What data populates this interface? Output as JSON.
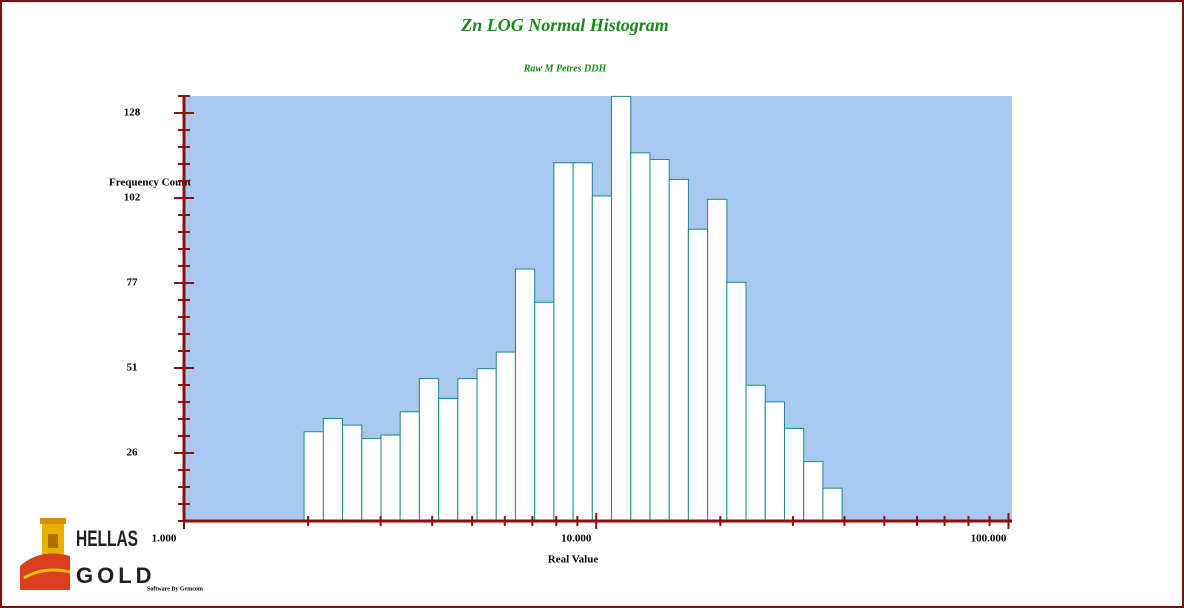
{
  "chart_data": {
    "type": "histogram",
    "title": "Zn LOG Normal Histogram",
    "subtitle": "Raw M Petres DDH",
    "xlabel": "Real Value",
    "ylabel": "Frequency Count",
    "xlog": true,
    "bins": [
      1.956,
      2.178,
      2.424,
      2.699,
      3.005,
      3.345,
      3.724,
      4.146,
      4.616,
      5.139,
      5.721,
      6.369,
      7.091,
      7.894,
      8.789,
      9.784,
      10.893,
      12.127,
      13.501,
      15.031,
      16.734,
      18.63,
      20.741,
      23.091,
      25.707,
      28.62,
      31.862,
      35.472,
      39.491
    ],
    "values": [
      32,
      36,
      34,
      30,
      31,
      38,
      48,
      42,
      48,
      51,
      56,
      81,
      71,
      113,
      113,
      103,
      133,
      116,
      114,
      108,
      93,
      102,
      77,
      46,
      41,
      33,
      23,
      15
    ],
    "color": "#ffffff",
    "edgecolor": "#1a8a8a",
    "background": "#a8c8f0",
    "xlim": [
      1,
      102
    ],
    "xticks": [
      {
        "value": 1,
        "label": "1.000"
      },
      {
        "value": 10,
        "label": "10.000"
      },
      {
        "value": 100,
        "label": "100.000"
      }
    ],
    "xminorticks": [
      2,
      3,
      4,
      5,
      6,
      7,
      8,
      9,
      20,
      30,
      40,
      50,
      60,
      70,
      80,
      90
    ],
    "ylim": [
      5.12,
      133.12
    ],
    "yticks": [
      {
        "value": 25.6,
        "label": "26"
      },
      {
        "value": 51.2,
        "label": "51"
      },
      {
        "value": 76.8,
        "label": "77"
      },
      {
        "value": 102.4,
        "label": "102"
      },
      {
        "value": 128,
        "label": "128"
      }
    ],
    "yminorticks": [
      5.12,
      10.24,
      15.36,
      20.48,
      30.72,
      35.84,
      40.96,
      46.08,
      56.32,
      61.44,
      66.56,
      71.68,
      81.92,
      87.04,
      92.16,
      97.28,
      107.52,
      112.64,
      117.76,
      122.88,
      133.12
    ]
  },
  "logo": {
    "line1": "HELLAS",
    "line2": "GOLD"
  },
  "footer": "Software By Gemcom"
}
